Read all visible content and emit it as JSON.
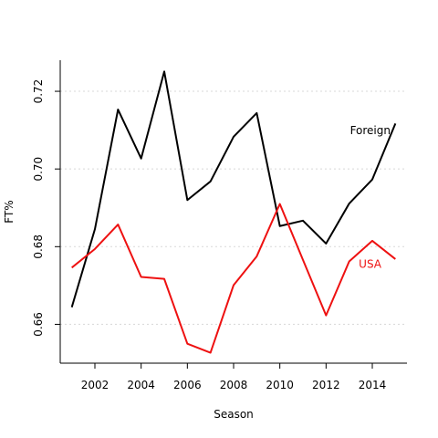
{
  "chart_data": {
    "type": "line",
    "xlabel": "Season",
    "ylabel": "FT%",
    "xlim": [
      2000.5,
      2015.5
    ],
    "ylim": [
      0.65,
      0.728
    ],
    "xticks": [
      2002,
      2004,
      2006,
      2008,
      2010,
      2012,
      2014
    ],
    "xtick_labels": [
      "2002",
      "2004",
      "2006",
      "2008",
      "2010",
      "2012",
      "2014"
    ],
    "yticks": [
      0.66,
      0.68,
      0.7,
      0.72
    ],
    "ytick_labels": [
      "0.66",
      "0.68",
      "0.70",
      "0.72"
    ],
    "grid": "horizontal dotted",
    "x": [
      2001,
      2002,
      2003,
      2004,
      2005,
      2006,
      2007,
      2008,
      2009,
      2010,
      2011,
      2012,
      2013,
      2014,
      2015
    ],
    "series": [
      {
        "name": "Foreign",
        "color": "#000000",
        "values": [
          0.6644,
          0.6845,
          0.7153,
          0.7027,
          0.7251,
          0.692,
          0.6968,
          0.7083,
          0.7144,
          0.6853,
          0.6867,
          0.6808,
          0.6911,
          0.6973,
          0.7117
        ]
      },
      {
        "name": "USA",
        "color": "#ee1111",
        "values": [
          0.6746,
          0.6794,
          0.6857,
          0.6722,
          0.6717,
          0.655,
          0.6527,
          0.6701,
          0.6775,
          0.691,
          0.6766,
          0.6623,
          0.6762,
          0.6815,
          0.6768
        ]
      }
    ]
  }
}
